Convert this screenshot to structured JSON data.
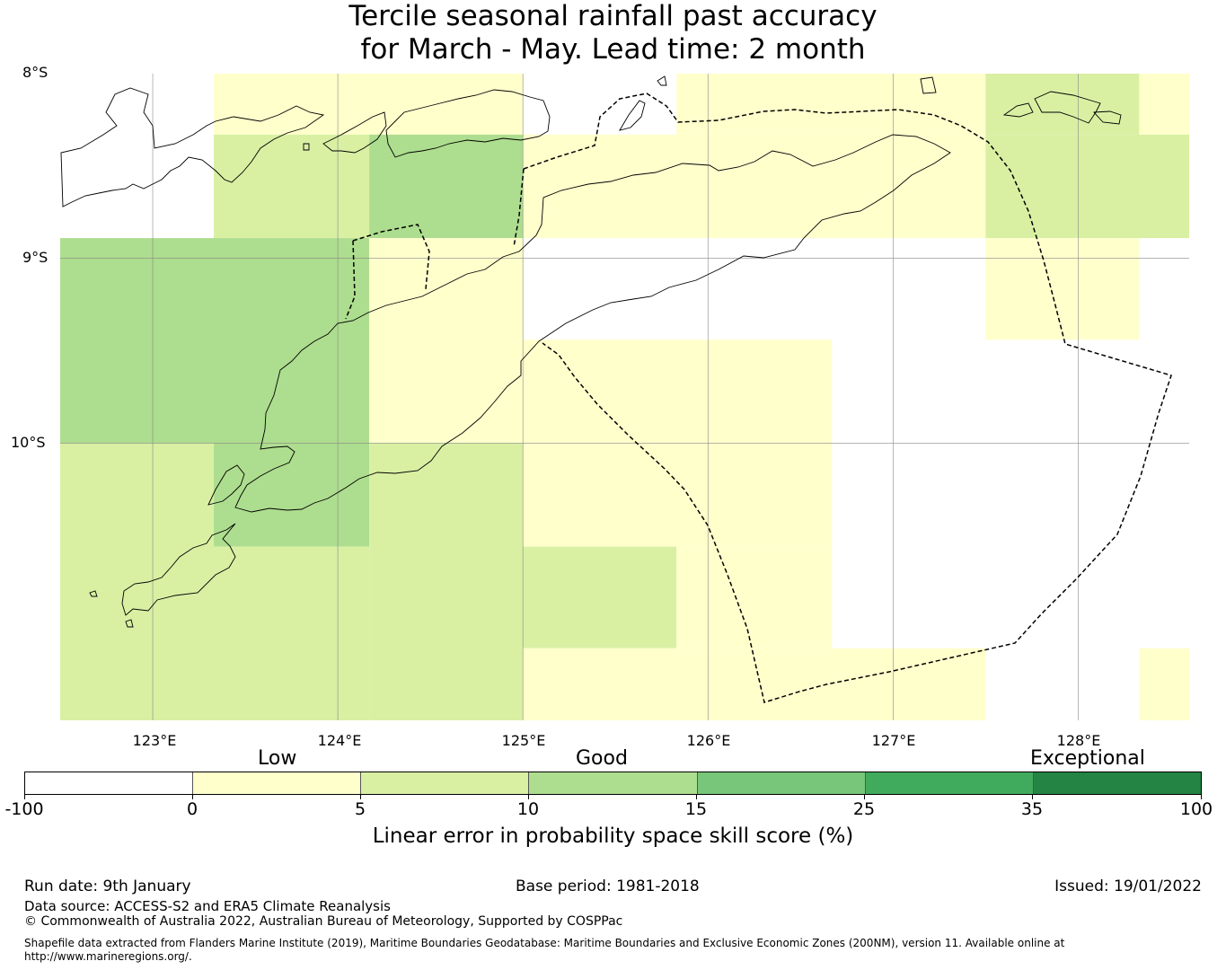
{
  "title": {
    "line1": "Tercile seasonal rainfall past accuracy",
    "line2": "for March - May. Lead time: 2 month"
  },
  "map": {
    "lon_range": [
      122.5,
      128.6
    ],
    "lat_range": [
      -8.0,
      -11.5
    ],
    "lat_labels": [
      "8°S",
      "9°S",
      "10°S"
    ],
    "lon_labels": [
      "123°E",
      "124°E",
      "125°E",
      "126°E",
      "127°E",
      "128°E"
    ],
    "cells": [
      {
        "lon": [
          123.33,
          125.0
        ],
        "lat": [
          -8.0,
          -8.33
        ],
        "cat": 1
      },
      {
        "lon": [
          125.83,
          127.5
        ],
        "lat": [
          -8.0,
          -8.33
        ],
        "cat": 1
      },
      {
        "lon": [
          127.5,
          128.33
        ],
        "lat": [
          -8.0,
          -8.33
        ],
        "cat": 2
      },
      {
        "lon": [
          128.33,
          128.6
        ],
        "lat": [
          -8.0,
          -8.33
        ],
        "cat": 1
      },
      {
        "lon": [
          123.33,
          124.17
        ],
        "lat": [
          -8.33,
          -8.89
        ],
        "cat": 2
      },
      {
        "lon": [
          124.17,
          125.0
        ],
        "lat": [
          -8.33,
          -8.89
        ],
        "cat": 3
      },
      {
        "lon": [
          125.0,
          127.5
        ],
        "lat": [
          -8.33,
          -8.89
        ],
        "cat": 1
      },
      {
        "lon": [
          127.5,
          128.6
        ],
        "lat": [
          -8.33,
          -8.89
        ],
        "cat": 2
      },
      {
        "lon": [
          122.5,
          124.17
        ],
        "lat": [
          -8.89,
          -10.0
        ],
        "cat": 3
      },
      {
        "lon": [
          124.17,
          125.0
        ],
        "lat": [
          -8.89,
          -10.0
        ],
        "cat": 1
      },
      {
        "lon": [
          127.5,
          128.33
        ],
        "lat": [
          -8.89,
          -9.44
        ],
        "cat": 1
      },
      {
        "lon": [
          125.0,
          126.67
        ],
        "lat": [
          -9.44,
          -10.0
        ],
        "cat": 1
      },
      {
        "lon": [
          122.5,
          123.33
        ],
        "lat": [
          -10.0,
          -11.5
        ],
        "cat": 2
      },
      {
        "lon": [
          123.33,
          124.17
        ],
        "lat": [
          -10.0,
          -10.56
        ],
        "cat": 3
      },
      {
        "lon": [
          123.33,
          124.17
        ],
        "lat": [
          -10.56,
          -11.5
        ],
        "cat": 2
      },
      {
        "lon": [
          124.17,
          125.0
        ],
        "lat": [
          -10.0,
          -11.5
        ],
        "cat": 2
      },
      {
        "lon": [
          125.0,
          126.67
        ],
        "lat": [
          -10.0,
          -10.56
        ],
        "cat": 1
      },
      {
        "lon": [
          125.0,
          125.83
        ],
        "lat": [
          -10.56,
          -11.11
        ],
        "cat": 2
      },
      {
        "lon": [
          125.83,
          126.67
        ],
        "lat": [
          -10.56,
          -11.11
        ],
        "cat": 1
      },
      {
        "lon": [
          125.0,
          127.5
        ],
        "lat": [
          -11.11,
          -11.5
        ],
        "cat": 1
      },
      {
        "lon": [
          128.33,
          128.6
        ],
        "lat": [
          -11.11,
          -11.5
        ],
        "cat": 1
      }
    ]
  },
  "legend": {
    "categories": [
      "Low",
      "Good",
      "Exceptional"
    ],
    "ticks": [
      "-100",
      "0",
      "5",
      "10",
      "15",
      "25",
      "35",
      "100"
    ],
    "colors": [
      "#ffffff",
      "#ffffcc",
      "#d9f0a3",
      "#addd8e",
      "#78c679",
      "#41ab5d",
      "#238443"
    ],
    "title": "Linear error in probability space skill score (%)"
  },
  "footer": {
    "run_date": "Run date: 9th January",
    "base_period": "Base period: 1981-2018",
    "issued": "Issued: 19/01/2022",
    "data_source": "Data source: ACCESS-S2 and ERA5 Climate Reanalysis",
    "copyright": "© Commonwealth of Australia 2022, Australian Bureau of Meteorology, Supported by COSPPac",
    "shapefile_line1": "Shapefile data extracted from Flanders Marine Institute (2019), Maritime Boundaries Geodatabase: Maritime Boundaries and Exclusive Economic Zones (200NM), version 11. Available online at",
    "shapefile_line2": "http://www.marineregions.org/."
  }
}
